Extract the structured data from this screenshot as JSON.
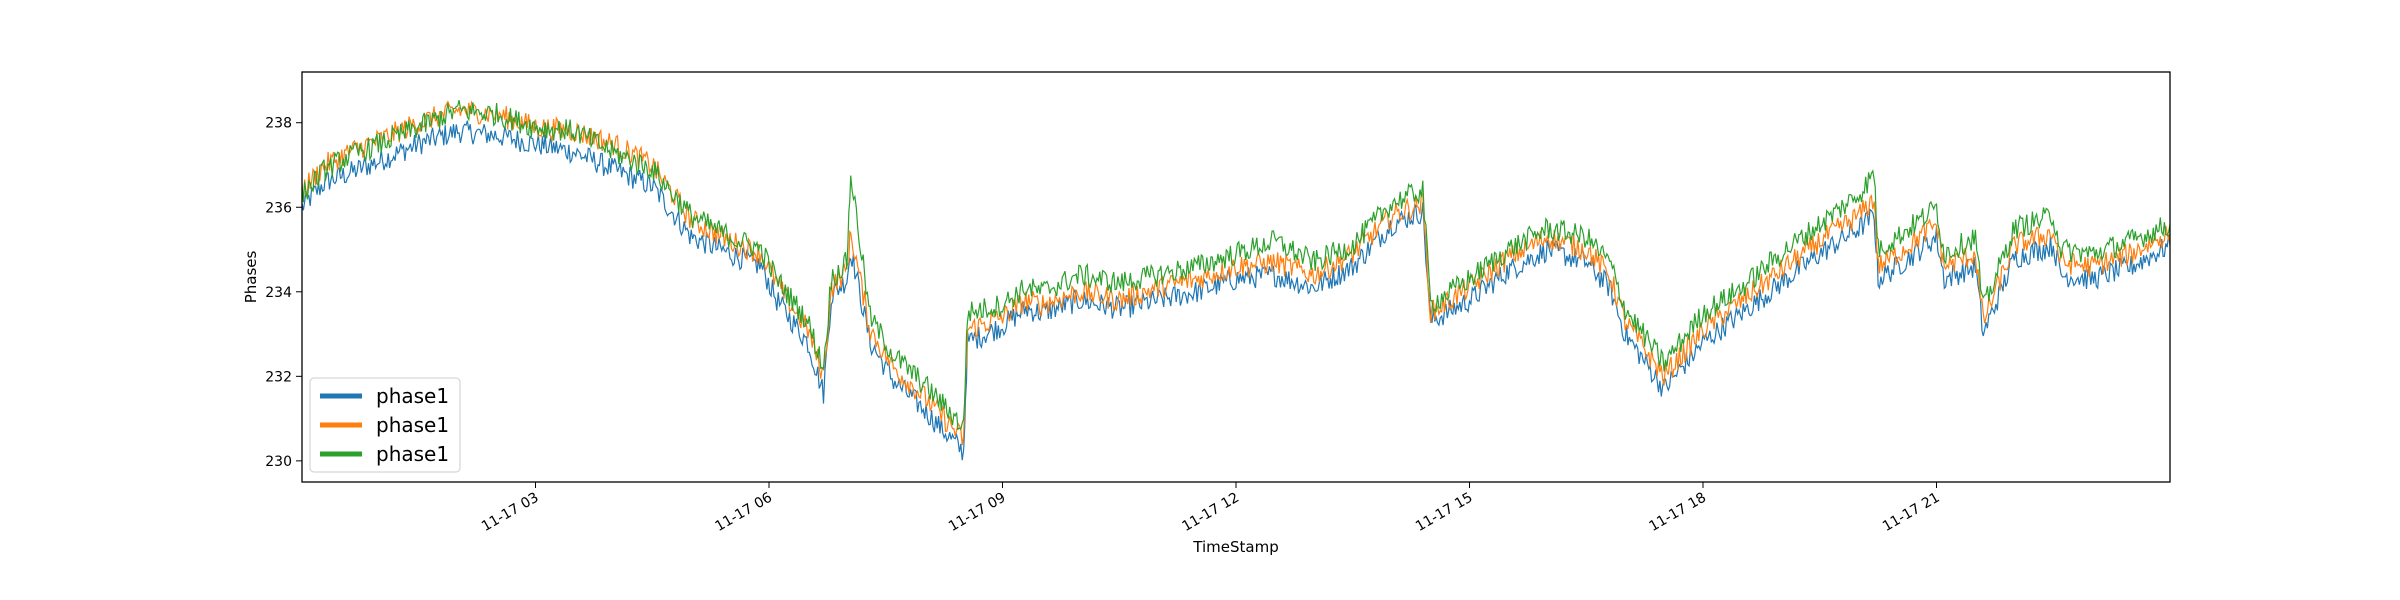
{
  "chart_data": {
    "type": "line",
    "title": "",
    "xlabel": "TimeStamp",
    "ylabel": "Phases",
    "xlim": [
      "11-17 00:00",
      "11-18 00:00"
    ],
    "ylim": [
      229.5,
      239.2
    ],
    "xticks": [
      {
        "label": "11-17 03",
        "hour": 3
      },
      {
        "label": "11-17 06",
        "hour": 6
      },
      {
        "label": "11-17 09",
        "hour": 9
      },
      {
        "label": "11-17 12",
        "hour": 12
      },
      {
        "label": "11-17 15",
        "hour": 15
      },
      {
        "label": "11-17 18",
        "hour": 18
      },
      {
        "label": "11-17 21",
        "hour": 21
      }
    ],
    "yticks": [
      230,
      232,
      234,
      236,
      238
    ],
    "grid": false,
    "legend": {
      "placement": "lower-left",
      "entries": [
        "phase1",
        "phase1",
        "phase1"
      ]
    },
    "series": [
      {
        "name": "phase1",
        "color": "#1f77b4",
        "x": [
          0,
          0.3,
          0.6,
          1,
          1.5,
          2,
          2.5,
          3,
          3.5,
          4,
          4.5,
          5,
          5.5,
          5.9,
          6.1,
          6.5,
          6.7,
          6.8,
          7,
          7.05,
          7.3,
          7.6,
          8,
          8.5,
          8.55,
          9,
          9.3,
          9.5,
          10,
          10.5,
          11,
          11.5,
          12,
          12.5,
          13,
          13.5,
          14,
          14.4,
          14.5,
          15,
          15.5,
          16,
          16.5,
          16.8,
          17,
          17.5,
          18,
          18.5,
          19,
          19.5,
          20,
          20.2,
          20.25,
          20.5,
          21,
          21.1,
          21.5,
          21.6,
          22,
          22.5,
          22.6,
          23,
          23.5,
          24
        ],
        "y": [
          236.0,
          236.6,
          236.8,
          237.1,
          237.5,
          237.8,
          237.7,
          237.5,
          237.3,
          236.9,
          236.5,
          235.3,
          234.9,
          234.6,
          233.8,
          232.8,
          231.6,
          233.9,
          234.3,
          235.0,
          232.8,
          231.9,
          231.2,
          230.2,
          232.8,
          233.2,
          233.6,
          233.5,
          233.8,
          233.6,
          233.8,
          234.0,
          234.3,
          234.4,
          234.1,
          234.6,
          235.6,
          235.9,
          233.3,
          233.8,
          234.5,
          235.0,
          234.7,
          234.1,
          233.0,
          231.7,
          232.8,
          233.5,
          234.2,
          234.9,
          235.5,
          235.8,
          234.3,
          234.6,
          235.3,
          234.3,
          234.6,
          233.0,
          234.8,
          235.1,
          234.4,
          234.3,
          234.6,
          235.1
        ]
      },
      {
        "name": "phase1",
        "color": "#ff7f0e",
        "x": [
          0,
          0.3,
          0.6,
          1,
          1.5,
          2,
          2.5,
          3,
          3.5,
          4,
          4.5,
          5,
          5.5,
          5.9,
          6.1,
          6.5,
          6.7,
          6.8,
          7,
          7.05,
          7.3,
          7.6,
          8,
          8.5,
          8.55,
          9,
          9.3,
          9.5,
          10,
          10.5,
          11,
          11.5,
          12,
          12.5,
          13,
          13.5,
          14,
          14.4,
          14.5,
          15,
          15.5,
          16,
          16.5,
          16.8,
          17,
          17.5,
          18,
          18.5,
          19,
          19.5,
          20,
          20.2,
          20.25,
          20.5,
          21,
          21.1,
          21.5,
          21.6,
          22,
          22.5,
          22.6,
          23,
          23.5,
          24
        ],
        "y": [
          236.4,
          237.0,
          237.3,
          237.6,
          238.0,
          238.3,
          238.2,
          237.9,
          237.8,
          237.5,
          237.0,
          235.7,
          235.2,
          234.9,
          234.2,
          233.1,
          232.0,
          234.1,
          234.5,
          235.4,
          233.1,
          232.2,
          231.5,
          230.5,
          233.1,
          233.4,
          233.8,
          233.7,
          234.0,
          233.8,
          234.1,
          234.3,
          234.6,
          234.7,
          234.4,
          234.9,
          235.8,
          236.1,
          233.5,
          234.1,
          234.8,
          235.3,
          235.0,
          234.4,
          233.3,
          232.0,
          233.1,
          233.8,
          234.5,
          235.2,
          235.8,
          236.2,
          234.6,
          234.9,
          235.6,
          234.6,
          234.9,
          233.3,
          235.1,
          235.4,
          234.7,
          234.6,
          234.9,
          235.4
        ]
      },
      {
        "name": "phase1",
        "color": "#2ca02c",
        "x": [
          0,
          0.3,
          0.6,
          1,
          1.5,
          2,
          2.5,
          3,
          3.5,
          4,
          4.5,
          5,
          5.5,
          5.9,
          6.1,
          6.5,
          6.7,
          6.8,
          7,
          7.05,
          7.3,
          7.6,
          8,
          8.5,
          8.55,
          9,
          9.3,
          9.5,
          10,
          10.5,
          11,
          11.5,
          12,
          12.5,
          13,
          13.5,
          14,
          14.4,
          14.5,
          15,
          15.5,
          16,
          16.5,
          16.8,
          17,
          17.5,
          18,
          18.5,
          19,
          19.5,
          20,
          20.2,
          20.25,
          20.5,
          21,
          21.1,
          21.5,
          21.6,
          22,
          22.5,
          22.6,
          23,
          23.5,
          24
        ],
        "y": [
          236.3,
          236.9,
          237.2,
          237.5,
          237.9,
          238.3,
          238.2,
          237.9,
          237.8,
          237.3,
          236.9,
          235.8,
          235.3,
          235.0,
          234.3,
          233.3,
          232.2,
          234.3,
          234.7,
          236.8,
          233.4,
          232.5,
          231.8,
          230.8,
          233.5,
          233.7,
          234.1,
          234.0,
          234.4,
          234.2,
          234.4,
          234.6,
          234.9,
          235.2,
          234.7,
          235.1,
          236.1,
          236.4,
          233.7,
          234.3,
          235.0,
          235.5,
          235.3,
          234.7,
          233.6,
          232.3,
          233.5,
          234.1,
          234.9,
          235.6,
          236.3,
          236.8,
          235.0,
          235.3,
          236.0,
          234.9,
          235.3,
          233.6,
          235.5,
          235.8,
          235.0,
          234.9,
          235.2,
          235.6
        ]
      }
    ]
  }
}
